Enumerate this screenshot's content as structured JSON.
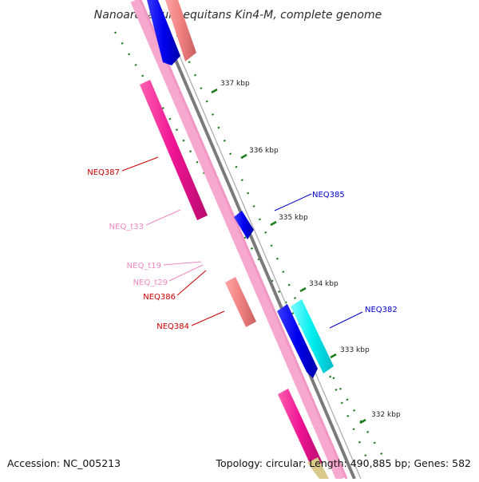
{
  "header": {
    "title": "Nanoarchaeum equitans Kin4-M, complete genome"
  },
  "footer": {
    "accession": "Accession: NC_005213",
    "summary": "Topology: circular; Length: 490,885 bp; Genes: 582"
  },
  "ruler": {
    "ticks": [
      {
        "label": "337 kbp"
      },
      {
        "label": "336 kbp"
      },
      {
        "label": "335 kbp"
      },
      {
        "label": "334 kbp"
      },
      {
        "label": "333 kbp"
      },
      {
        "label": "332 kbp"
      }
    ]
  },
  "genes": [
    {
      "name": "NEQ387",
      "side": "left",
      "color": "#cc0000"
    },
    {
      "name": "NEQ_t33",
      "side": "left",
      "color": "#ee88c0"
    },
    {
      "name": "NEQ_t19",
      "side": "left",
      "color": "#ee88c0"
    },
    {
      "name": "NEQ_t29",
      "side": "left",
      "color": "#ee88c0"
    },
    {
      "name": "NEQ386",
      "side": "left",
      "color": "#cc0000"
    },
    {
      "name": "NEQ384",
      "side": "left",
      "color": "#cc0000"
    },
    {
      "name": "NEQ385",
      "side": "right",
      "color": "#0000cc"
    },
    {
      "name": "NEQ382",
      "side": "right",
      "color": "#0000cc"
    }
  ],
  "colors": {
    "forward_cds": "#0000ee",
    "reverse_cds": "#ee1493",
    "trna": "#ff99cc",
    "rrna_like": "#f08080",
    "cyan_feature": "#00eeee",
    "backbone": "#808080",
    "gc_skew_dots": "#1a7a1a"
  }
}
